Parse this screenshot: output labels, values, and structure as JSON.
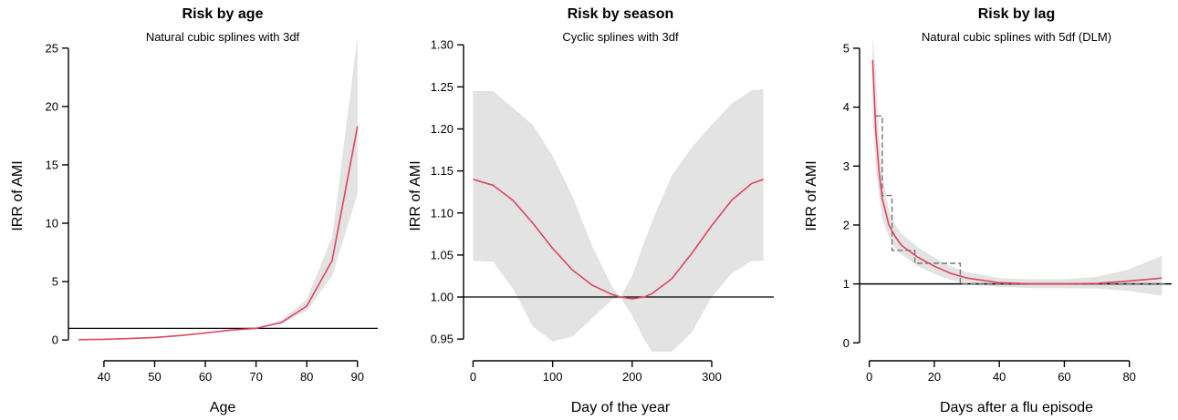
{
  "chart_data": [
    {
      "type": "line",
      "title": "Risk by age",
      "subtitle": "Natural cubic splines with 3df",
      "xlabel": "Age",
      "ylabel": "IRR of AMI",
      "xlim": [
        33,
        94
      ],
      "ylim": [
        -1,
        26
      ],
      "xticks": [
        40,
        50,
        60,
        70,
        80,
        90
      ],
      "yticks": [
        0,
        5,
        10,
        15,
        20,
        25
      ],
      "xtick_labels": [
        "40",
        "50",
        "60",
        "70",
        "80",
        "90"
      ],
      "ytick_labels": [
        "0",
        "5",
        "10",
        "15",
        "20",
        "25"
      ],
      "reference_line": 1,
      "colors": {
        "line": "#e0445e",
        "band": "#e3e3e3",
        "ref": "#000000"
      },
      "series": [
        {
          "x": [
            35,
            40,
            45,
            50,
            55,
            60,
            65,
            70,
            75,
            80,
            85,
            90
          ],
          "y": [
            0.03,
            0.06,
            0.12,
            0.22,
            0.38,
            0.6,
            0.85,
            1.0,
            1.5,
            2.9,
            6.8,
            18.3
          ],
          "lower": [
            0.02,
            0.05,
            0.1,
            0.19,
            0.34,
            0.55,
            0.8,
            1.0,
            1.4,
            2.5,
            5.5,
            12.5
          ],
          "upper": [
            0.05,
            0.08,
            0.14,
            0.25,
            0.42,
            0.65,
            0.9,
            1.0,
            1.7,
            3.5,
            8.8,
            26.0
          ]
        }
      ]
    },
    {
      "type": "line",
      "title": "Risk by season",
      "subtitle": "Cyclic splines with 3df",
      "xlabel": "Day of the year",
      "ylabel": "IRR of AMI",
      "xlim": [
        -12,
        378
      ],
      "ylim": [
        0.935,
        1.31
      ],
      "xticks": [
        0,
        100,
        200,
        300
      ],
      "yticks": [
        0.95,
        1.0,
        1.05,
        1.1,
        1.15,
        1.2,
        1.25,
        1.3
      ],
      "xtick_labels": [
        "0",
        "100",
        "200",
        "300"
      ],
      "ytick_labels": [
        "0.95",
        "1.00",
        "1.05",
        "1.10",
        "1.15",
        "1.20",
        "1.25",
        "1.30"
      ],
      "reference_line": 1,
      "colors": {
        "line": "#e0445e",
        "band": "#e3e3e3",
        "ref": "#000000"
      },
      "series": [
        {
          "x": [
            0,
            25,
            50,
            75,
            100,
            125,
            150,
            175,
            185,
            200,
            215,
            225,
            250,
            275,
            300,
            325,
            350,
            365
          ],
          "y": [
            1.14,
            1.133,
            1.115,
            1.088,
            1.058,
            1.032,
            1.014,
            1.003,
            1.0,
            0.998,
            1.0,
            1.004,
            1.022,
            1.052,
            1.085,
            1.115,
            1.135,
            1.14
          ],
          "lower": [
            1.043,
            1.042,
            1.01,
            0.965,
            0.947,
            0.953,
            0.975,
            0.997,
            1.0,
            0.978,
            0.95,
            0.935,
            0.935,
            0.958,
            1.0,
            1.028,
            1.043,
            1.043
          ],
          "upper": [
            1.245,
            1.245,
            1.225,
            1.205,
            1.168,
            1.12,
            1.06,
            1.012,
            1.0,
            1.025,
            1.065,
            1.09,
            1.145,
            1.178,
            1.205,
            1.23,
            1.246,
            1.247
          ]
        }
      ]
    },
    {
      "type": "line",
      "title": "Risk by lag",
      "subtitle": "Natural cubic splines with 5df (DLM)",
      "xlabel": "Days after a flu episode",
      "ylabel": "IRR of AMI",
      "xlim": [
        -3,
        93
      ],
      "ylim": [
        -0.15,
        5.2
      ],
      "xticks": [
        0,
        20,
        40,
        60,
        80
      ],
      "yticks": [
        0,
        1,
        2,
        3,
        4,
        5
      ],
      "xtick_labels": [
        "0",
        "20",
        "40",
        "60",
        "80"
      ],
      "ytick_labels": [
        "0",
        "1",
        "2",
        "3",
        "4",
        "5"
      ],
      "reference_line": 1,
      "colors": {
        "line": "#e0445e",
        "band": "#e3e3e3",
        "ref": "#000000",
        "step": "#777777"
      },
      "series": [
        {
          "x": [
            1,
            2,
            3,
            4,
            6,
            8,
            10,
            15,
            20,
            25,
            30,
            40,
            50,
            60,
            70,
            80,
            90
          ],
          "y": [
            4.8,
            3.6,
            2.9,
            2.45,
            2.0,
            1.8,
            1.65,
            1.45,
            1.3,
            1.18,
            1.1,
            1.02,
            1.0,
            1.0,
            1.01,
            1.05,
            1.1
          ],
          "lower": [
            3.8,
            3.0,
            2.5,
            2.1,
            1.8,
            1.6,
            1.5,
            1.3,
            1.17,
            1.07,
            1.0,
            0.95,
            0.93,
            0.93,
            0.92,
            0.88,
            0.8
          ],
          "upper": [
            5.2,
            4.6,
            3.5,
            2.85,
            2.25,
            2.0,
            1.85,
            1.62,
            1.45,
            1.3,
            1.2,
            1.1,
            1.08,
            1.08,
            1.12,
            1.25,
            1.48
          ]
        }
      ],
      "step_series": {
        "x": [
          2,
          4,
          4,
          7,
          7,
          14,
          14,
          28,
          28,
          91
        ],
        "y": [
          3.85,
          3.85,
          2.5,
          2.5,
          1.57,
          1.57,
          1.35,
          1.35,
          1.0,
          1.0
        ]
      }
    }
  ]
}
